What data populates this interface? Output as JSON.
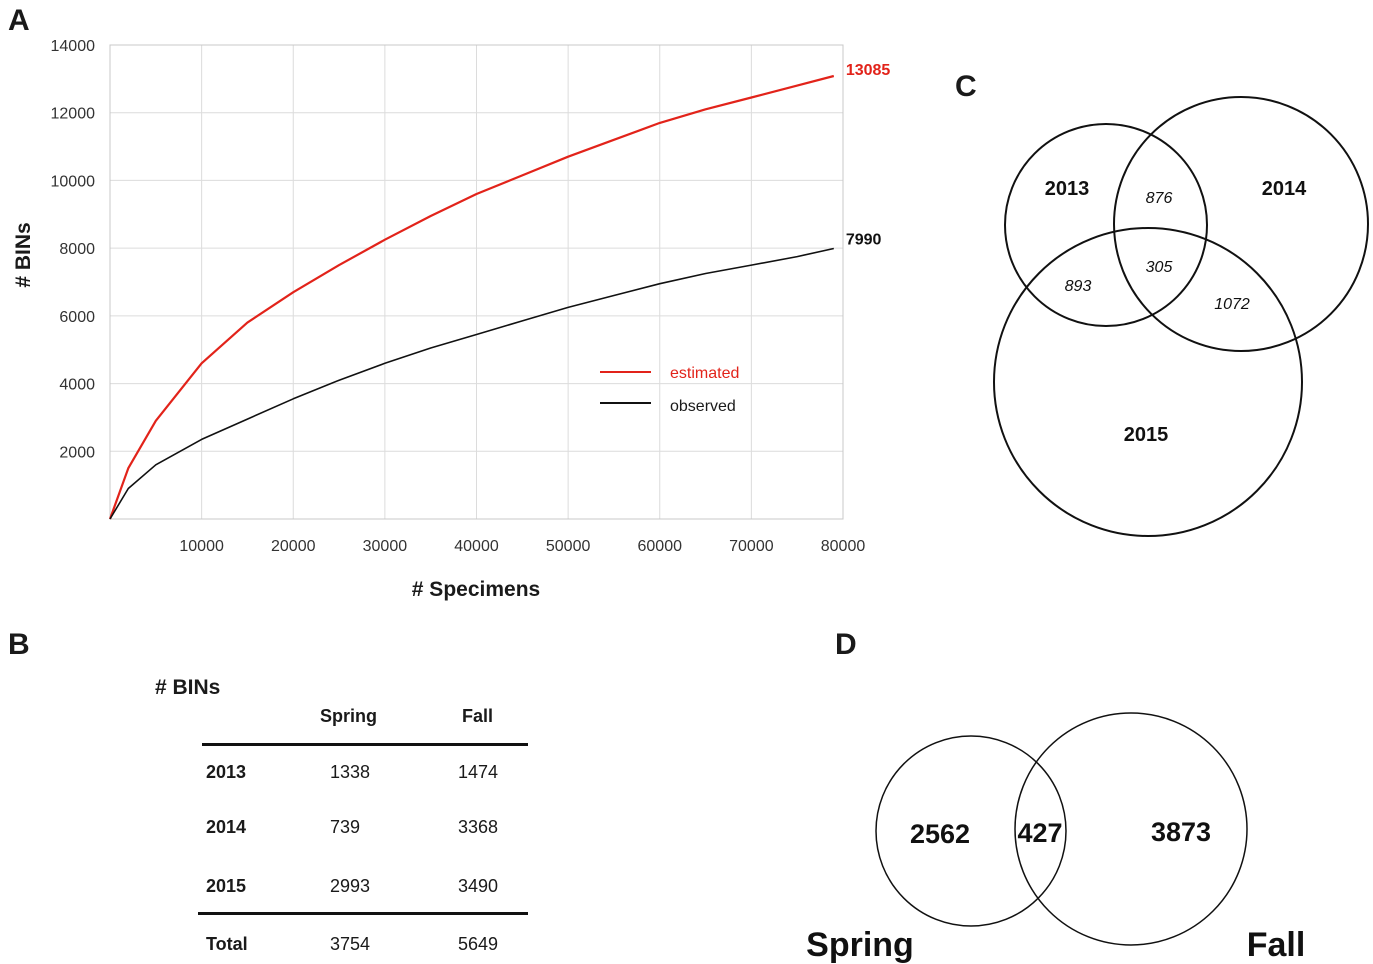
{
  "panels": {
    "a": "A",
    "b": "B",
    "c": "C",
    "d": "D"
  },
  "chart_data": [
    {
      "type": "line",
      "xlabel": "# Specimens",
      "ylabel": "# BINs",
      "xlim": [
        0,
        80000
      ],
      "ylim": [
        0,
        14000
      ],
      "x_ticks": [
        10000,
        20000,
        30000,
        40000,
        50000,
        60000,
        70000,
        80000
      ],
      "y_ticks": [
        2000,
        4000,
        6000,
        8000,
        10000,
        12000,
        14000
      ],
      "grid": true,
      "legend_position": "center-right",
      "series": [
        {
          "name": "estimated",
          "color": "#e2231a",
          "end_label": "13085",
          "points": [
            [
              0,
              0
            ],
            [
              2000,
              1500
            ],
            [
              5000,
              2900
            ],
            [
              10000,
              4600
            ],
            [
              15000,
              5800
            ],
            [
              20000,
              6700
            ],
            [
              25000,
              7500
            ],
            [
              30000,
              8250
            ],
            [
              35000,
              8950
            ],
            [
              40000,
              9600
            ],
            [
              45000,
              10150
            ],
            [
              50000,
              10700
            ],
            [
              55000,
              11200
            ],
            [
              60000,
              11700
            ],
            [
              65000,
              12100
            ],
            [
              70000,
              12450
            ],
            [
              75000,
              12800
            ],
            [
              79000,
              13085
            ]
          ]
        },
        {
          "name": "observed",
          "color": "#111111",
          "end_label": "7990",
          "points": [
            [
              0,
              0
            ],
            [
              2000,
              900
            ],
            [
              5000,
              1600
            ],
            [
              10000,
              2350
            ],
            [
              15000,
              2950
            ],
            [
              20000,
              3550
            ],
            [
              25000,
              4100
            ],
            [
              30000,
              4600
            ],
            [
              35000,
              5050
            ],
            [
              40000,
              5450
            ],
            [
              45000,
              5850
            ],
            [
              50000,
              6250
            ],
            [
              55000,
              6600
            ],
            [
              60000,
              6950
            ],
            [
              65000,
              7250
            ],
            [
              70000,
              7500
            ],
            [
              75000,
              7750
            ],
            [
              79000,
              7990
            ]
          ]
        }
      ]
    },
    {
      "type": "table",
      "title": "# BINs",
      "columns": [
        "",
        "Spring",
        "Fall"
      ],
      "rows": [
        [
          "2013",
          "1338",
          "1474"
        ],
        [
          "2014",
          "739",
          "3368"
        ],
        [
          "2015",
          "2993",
          "3490"
        ],
        [
          "Total",
          "3754",
          "5649"
        ]
      ]
    }
  ],
  "venn_c": {
    "labels": {
      "y2013": "2013",
      "y2014": "2014",
      "y2015": "2015"
    },
    "overlaps": {
      "a13_14": "876",
      "a13_15": "893",
      "all": "305",
      "a14_15": "1072"
    }
  },
  "venn_d": {
    "spring_only": "2562",
    "shared": "427",
    "fall_only": "3873",
    "spring_label": "Spring",
    "fall_label": "Fall"
  }
}
